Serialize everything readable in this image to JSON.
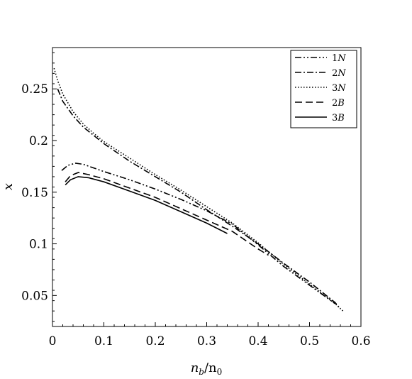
{
  "chart_data": {
    "type": "line",
    "title": "",
    "xlabel": "n_b/n_0",
    "ylabel": "x",
    "xlim": [
      0,
      0.6
    ],
    "ylim": [
      0.02,
      0.29
    ],
    "xticks": [
      0,
      0.1,
      0.2,
      0.3,
      0.4,
      0.5,
      0.6
    ],
    "xtick_labels": [
      "0",
      "0.1",
      "0.2",
      "0.3",
      "0.4",
      "0.5",
      "0.6"
    ],
    "yticks": [
      0.05,
      0.1,
      0.15,
      0.2,
      0.25
    ],
    "ytick_labels": [
      "0.05",
      "0.1",
      "0.15",
      "0.2",
      "0.25"
    ],
    "grid": false,
    "legend_position": "top-right",
    "series": [
      {
        "name": "1N",
        "dash": "dash-dot-dot",
        "x": [
          0.018,
          0.03,
          0.045,
          0.06,
          0.1,
          0.15,
          0.2,
          0.25,
          0.3,
          0.35,
          0.4,
          0.45,
          0.5,
          0.55
        ],
        "y": [
          0.171,
          0.176,
          0.178,
          0.177,
          0.17,
          0.162,
          0.153,
          0.143,
          0.132,
          0.119,
          0.099,
          0.078,
          0.06,
          0.042
        ]
      },
      {
        "name": "2N",
        "dash": "dash-dot",
        "x": [
          0.01,
          0.02,
          0.04,
          0.06,
          0.08,
          0.1,
          0.15,
          0.2,
          0.25,
          0.3,
          0.35,
          0.4,
          0.45,
          0.5,
          0.55,
          0.56
        ],
        "y": [
          0.25,
          0.238,
          0.224,
          0.213,
          0.205,
          0.197,
          0.18,
          0.165,
          0.15,
          0.133,
          0.117,
          0.1,
          0.081,
          0.063,
          0.043,
          0.037
        ]
      },
      {
        "name": "3N",
        "dash": "dotted",
        "x": [
          0.003,
          0.01,
          0.02,
          0.04,
          0.06,
          0.08,
          0.1,
          0.15,
          0.2,
          0.25,
          0.3,
          0.35,
          0.4,
          0.45,
          0.5,
          0.55,
          0.565
        ],
        "y": [
          0.27,
          0.258,
          0.245,
          0.228,
          0.216,
          0.207,
          0.199,
          0.183,
          0.167,
          0.152,
          0.136,
          0.12,
          0.101,
          0.08,
          0.061,
          0.042,
          0.035
        ]
      },
      {
        "name": "2B",
        "dash": "dashed",
        "x": [
          0.025,
          0.035,
          0.05,
          0.07,
          0.1,
          0.15,
          0.2,
          0.25,
          0.3,
          0.35,
          0.4,
          0.42
        ],
        "y": [
          0.16,
          0.166,
          0.169,
          0.167,
          0.163,
          0.154,
          0.145,
          0.134,
          0.123,
          0.112,
          0.095,
          0.089
        ]
      },
      {
        "name": "3B",
        "dash": "solid",
        "x": [
          0.025,
          0.035,
          0.05,
          0.07,
          0.1,
          0.15,
          0.2,
          0.25,
          0.3,
          0.34
        ],
        "y": [
          0.157,
          0.162,
          0.165,
          0.164,
          0.16,
          0.151,
          0.142,
          0.131,
          0.12,
          0.11
        ]
      }
    ]
  }
}
